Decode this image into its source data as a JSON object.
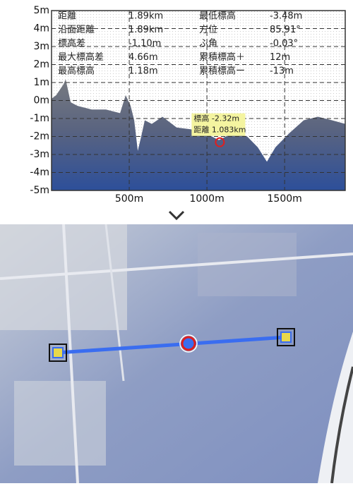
{
  "stats": [
    {
      "label": "距離",
      "value": "1.89km"
    },
    {
      "label": "最低標高",
      "value": "-3.48m"
    },
    {
      "label": "沿面距離",
      "value": "1.89km"
    },
    {
      "label": "方位",
      "value": "85.91°"
    },
    {
      "label": "標高差",
      "value": "-1.10m"
    },
    {
      "label": "ふ角",
      "value": "-0.03°"
    },
    {
      "label": "最大標高差",
      "value": "4.66m"
    },
    {
      "label": "累積標高＋",
      "value": "12m"
    },
    {
      "label": "最高標高",
      "value": "1.18m"
    },
    {
      "label": "累積標高ー",
      "value": "-13m"
    }
  ],
  "profile": {
    "type": "area",
    "x": [
      0,
      30,
      77,
      91,
      123,
      168,
      259,
      350,
      441,
      477,
      509,
      532,
      555,
      577,
      600,
      645,
      714,
      805,
      895,
      986,
      1077,
      1168,
      1259,
      1327,
      1386,
      1441,
      1532,
      1623,
      1714,
      1805,
      1890
    ],
    "values": [
      0.1,
      0.3,
      0.9,
      1.18,
      -0.1,
      -0.3,
      -0.5,
      -0.5,
      -0.7,
      0.3,
      -0.3,
      -1.1,
      -2.8,
      -2.0,
      -1.1,
      -1.3,
      -0.9,
      -1.5,
      -1.6,
      -1.8,
      -2.2,
      -1.8,
      -2.0,
      -2.6,
      -3.4,
      -2.6,
      -1.8,
      -1.1,
      -0.9,
      -1.1,
      -1.3
    ],
    "xlim": [
      0,
      1890
    ],
    "ylim": [
      -5,
      5
    ],
    "xticks": [
      {
        "value": 500,
        "label": "500m"
      },
      {
        "value": 1000,
        "label": "1000m"
      },
      {
        "value": 1500,
        "label": "1500m"
      }
    ],
    "yticks": [
      {
        "value": 5,
        "label": "5m"
      },
      {
        "value": 4,
        "label": "4m"
      },
      {
        "value": 3,
        "label": "3m"
      },
      {
        "value": 2,
        "label": "2m"
      },
      {
        "value": 1,
        "label": "1m"
      },
      {
        "value": 0,
        "label": "0m"
      },
      {
        "value": -1,
        "label": "-1m"
      },
      {
        "value": -2,
        "label": "-2m"
      },
      {
        "value": -3,
        "label": "-3m"
      },
      {
        "value": -4,
        "label": "-4m"
      },
      {
        "value": -5,
        "label": "-5m"
      }
    ]
  },
  "cursor": {
    "y": {
      "value": -2.32,
      "label": "標高 -2.32m"
    },
    "x": {
      "value": 1083,
      "label": "距離 1.083km"
    }
  }
}
